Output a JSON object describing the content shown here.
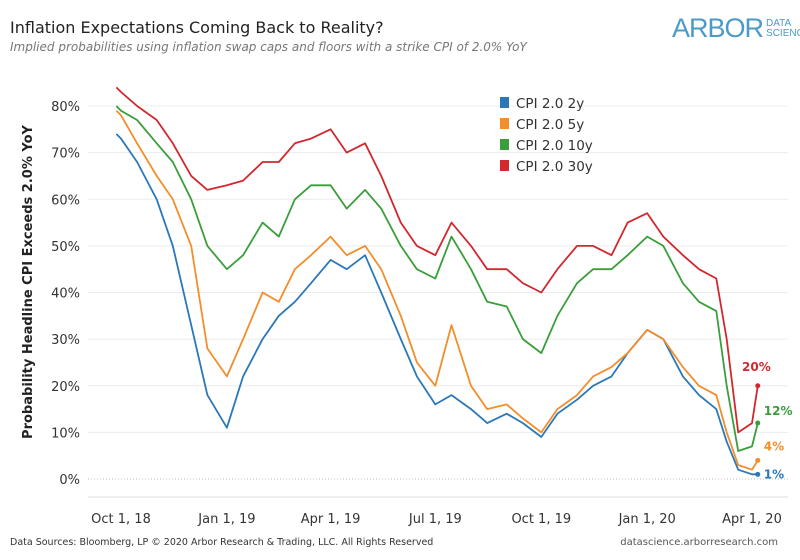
{
  "title": "Inflation Expectations Coming Back to Reality?",
  "subtitle": "Implied probabilities using inflation swap caps and floors with a strike CPI of 2.0% YoY",
  "logo": {
    "main": "ARBOR",
    "line1": "DATA",
    "line2": "SCIENCE"
  },
  "footer": {
    "left": "Data Sources: Bloomberg, LP © 2020 Arbor Research & Trading, LLC. All Rights Reserved",
    "right": "datascience.arborresearch.com"
  },
  "chart_data": {
    "type": "line",
    "ylabel": "Probability Headline CPI Exceeds 2.0% YoY",
    "xlabel": "",
    "ylim": [
      -4,
      86
    ],
    "xlim": [
      "2018-09-20",
      "2020-04-25"
    ],
    "yticks": [
      0,
      10,
      20,
      30,
      40,
      50,
      60,
      70,
      80
    ],
    "ytick_labels": [
      "0%",
      "10%",
      "20%",
      "30%",
      "40%",
      "50%",
      "60%",
      "70%",
      "80%"
    ],
    "xticks": [
      "2018-10-01",
      "2019-01-01",
      "2019-04-01",
      "2019-07-01",
      "2019-10-01",
      "2020-01-01",
      "2020-04-01"
    ],
    "xtick_labels": [
      "Oct 1, 18",
      "Jan 1, 19",
      "Apr 1, 19",
      "Jul 1, 19",
      "Oct 1, 19",
      "Jan 1, 20",
      "Apr 1, 20"
    ],
    "grid": true,
    "legend": "top-right",
    "x": [
      "2018-09-27",
      "2018-10-01",
      "2018-10-15",
      "2018-11-01",
      "2018-11-15",
      "2018-12-01",
      "2018-12-15",
      "2019-01-01",
      "2019-01-15",
      "2019-02-01",
      "2019-02-15",
      "2019-03-01",
      "2019-03-15",
      "2019-04-01",
      "2019-04-15",
      "2019-05-01",
      "2019-05-15",
      "2019-06-01",
      "2019-06-15",
      "2019-07-01",
      "2019-07-15",
      "2019-08-01",
      "2019-08-15",
      "2019-09-01",
      "2019-09-15",
      "2019-10-01",
      "2019-10-15",
      "2019-11-01",
      "2019-11-15",
      "2019-12-01",
      "2019-12-15",
      "2020-01-01",
      "2020-01-15",
      "2020-02-01",
      "2020-02-15",
      "2020-03-01",
      "2020-03-10",
      "2020-03-20",
      "2020-04-01",
      "2020-04-06"
    ],
    "series": [
      {
        "name": "CPI 2.0 2y",
        "color": "#2b78b8",
        "end_label": "1%",
        "values": [
          74,
          73,
          68,
          60,
          50,
          33,
          18,
          11,
          22,
          30,
          35,
          38,
          42,
          47,
          45,
          48,
          40,
          30,
          22,
          16,
          18,
          15,
          12,
          14,
          12,
          9,
          14,
          17,
          20,
          22,
          27,
          32,
          30,
          22,
          18,
          15,
          8,
          2,
          1,
          1
        ]
      },
      {
        "name": "CPI 2.0 5y",
        "color": "#f28e2b",
        "end_label": "4%",
        "values": [
          79,
          78,
          72,
          65,
          60,
          50,
          28,
          22,
          30,
          40,
          38,
          45,
          48,
          52,
          48,
          50,
          45,
          35,
          25,
          20,
          33,
          20,
          15,
          16,
          13,
          10,
          15,
          18,
          22,
          24,
          27,
          32,
          30,
          24,
          20,
          18,
          10,
          3,
          2,
          4
        ]
      },
      {
        "name": "CPI 2.0 10y",
        "color": "#3a9e3a",
        "end_label": "12%",
        "values": [
          80,
          79,
          77,
          72,
          68,
          60,
          50,
          45,
          48,
          55,
          52,
          60,
          63,
          63,
          58,
          62,
          58,
          50,
          45,
          43,
          52,
          45,
          38,
          37,
          30,
          27,
          35,
          42,
          45,
          45,
          48,
          52,
          50,
          42,
          38,
          36,
          20,
          6,
          7,
          12
        ]
      },
      {
        "name": "CPI 2.0 30y",
        "color": "#d1282f",
        "end_label": "20%",
        "values": [
          84,
          83,
          80,
          77,
          72,
          65,
          62,
          63,
          64,
          68,
          68,
          72,
          73,
          75,
          70,
          72,
          65,
          55,
          50,
          48,
          55,
          50,
          45,
          45,
          42,
          40,
          45,
          50,
          50,
          48,
          55,
          57,
          52,
          48,
          45,
          43,
          30,
          10,
          12,
          20
        ]
      }
    ]
  }
}
